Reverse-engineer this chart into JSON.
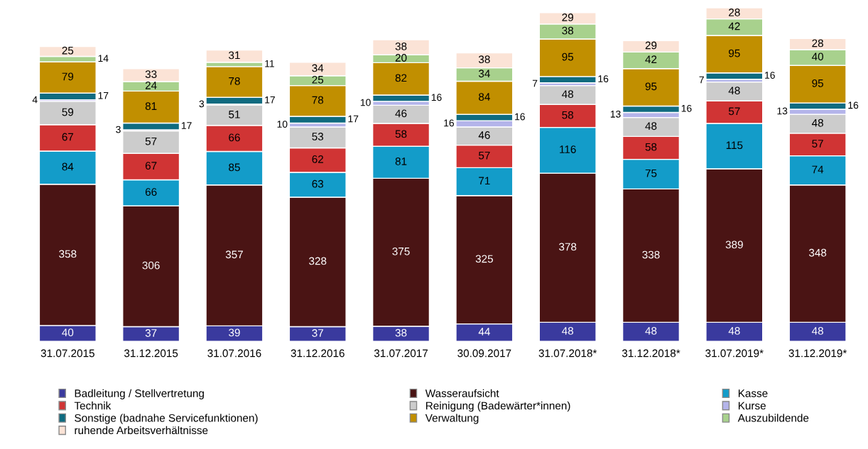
{
  "chart_data": {
    "type": "bar",
    "stacked": true,
    "data_labels": true,
    "legend": "bottom",
    "grid": false,
    "categories": [
      "31.07.2015",
      "31.12.2015",
      "31.07.2016",
      "31.12.2016",
      "31.07.2017",
      "30.09.2017",
      "31.07.2018*",
      "31.12.2018*",
      "31.07.2019*",
      "31.12.2019*"
    ],
    "series": [
      {
        "name": "Badleitung / Stellvertretung",
        "color": "#3a3a9e",
        "values": [
          40,
          37,
          39,
          37,
          38,
          44,
          48,
          48,
          48,
          48
        ]
      },
      {
        "name": "Wasseraufsicht",
        "color": "#4a1414",
        "values": [
          358,
          306,
          357,
          328,
          375,
          325,
          378,
          338,
          389,
          348
        ]
      },
      {
        "name": "Kasse",
        "color": "#139cc9",
        "values": [
          84,
          66,
          85,
          63,
          81,
          71,
          116,
          75,
          115,
          74
        ]
      },
      {
        "name": "Technik",
        "color": "#d03434",
        "values": [
          67,
          67,
          66,
          62,
          58,
          57,
          58,
          58,
          57,
          57
        ]
      },
      {
        "name": "Reinigung (Badewärter*innen)",
        "color": "#cccccc",
        "values": [
          59,
          57,
          51,
          53,
          46,
          46,
          48,
          48,
          48,
          48
        ]
      },
      {
        "name": "Kurse",
        "color": "#b4b4ea",
        "values": [
          4,
          3,
          3,
          10,
          10,
          16,
          7,
          13,
          7,
          13
        ]
      },
      {
        "name": "Sonstige (badnahe Servicefunktionen)",
        "color": "#0f6b80",
        "values": [
          17,
          17,
          17,
          17,
          16,
          16,
          16,
          16,
          16,
          16
        ]
      },
      {
        "name": "Verwaltung",
        "color": "#c18f00",
        "values": [
          79,
          81,
          78,
          78,
          82,
          84,
          95,
          95,
          95,
          95
        ]
      },
      {
        "name": "Auszubildende",
        "color": "#a8d18d",
        "values": [
          14,
          24,
          11,
          25,
          20,
          34,
          38,
          42,
          42,
          40
        ]
      },
      {
        "name": "ruhende Arbeitsverhältnisse",
        "color": "#fbe3d6",
        "values": [
          25,
          33,
          31,
          34,
          38,
          38,
          29,
          29,
          28,
          28
        ]
      }
    ]
  }
}
